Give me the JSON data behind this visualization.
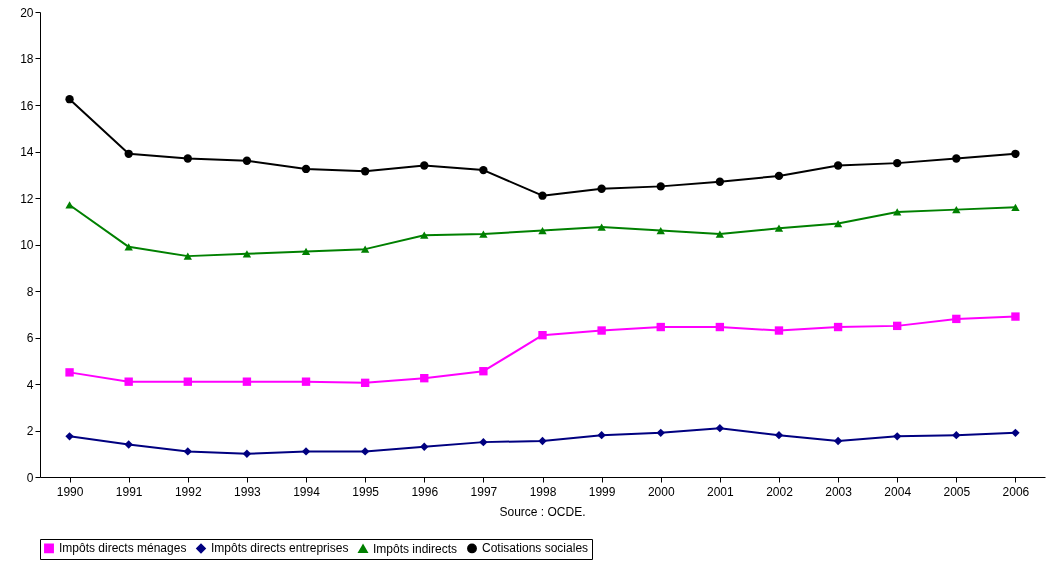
{
  "chart_data": {
    "type": "line",
    "categories": [
      "1990",
      "1991",
      "1992",
      "1993",
      "1994",
      "1995",
      "1996",
      "1997",
      "1998",
      "1999",
      "2000",
      "2001",
      "2002",
      "2003",
      "2004",
      "2005",
      "2006"
    ],
    "series": [
      {
        "name": "Impôts directs ménages",
        "color": "#ff00ff",
        "marker": "square",
        "values": [
          4.5,
          4.1,
          4.1,
          4.1,
          4.1,
          4.05,
          4.25,
          4.55,
          6.1,
          6.3,
          6.45,
          6.45,
          6.3,
          6.45,
          6.5,
          6.8,
          6.9
        ]
      },
      {
        "name": "Impôts directs entreprises",
        "color": "#000080",
        "marker": "diamond",
        "values": [
          1.75,
          1.4,
          1.1,
          1.0,
          1.1,
          1.1,
          1.3,
          1.5,
          1.55,
          1.8,
          1.9,
          2.1,
          1.8,
          1.55,
          1.75,
          1.8,
          1.9
        ]
      },
      {
        "name": "Impôts indirects",
        "color": "#008000",
        "marker": "triangle",
        "values": [
          11.7,
          9.9,
          9.5,
          9.6,
          9.7,
          9.8,
          10.4,
          10.45,
          10.6,
          10.75,
          10.6,
          10.45,
          10.7,
          10.9,
          11.4,
          11.5,
          11.6
        ]
      },
      {
        "name": "Cotisations sociales",
        "color": "#000000",
        "marker": "circle",
        "values": [
          16.25,
          13.9,
          13.7,
          13.6,
          13.25,
          13.15,
          13.4,
          13.2,
          12.1,
          12.4,
          12.5,
          12.7,
          12.95,
          13.4,
          13.5,
          13.7,
          13.9
        ]
      }
    ],
    "ylim": [
      0,
      20
    ],
    "yticks": [
      0,
      2,
      4,
      6,
      8,
      10,
      12,
      14,
      16,
      18,
      20
    ],
    "grid": false,
    "legend": "bottom",
    "annotations": [
      "Source : OCDE."
    ]
  }
}
